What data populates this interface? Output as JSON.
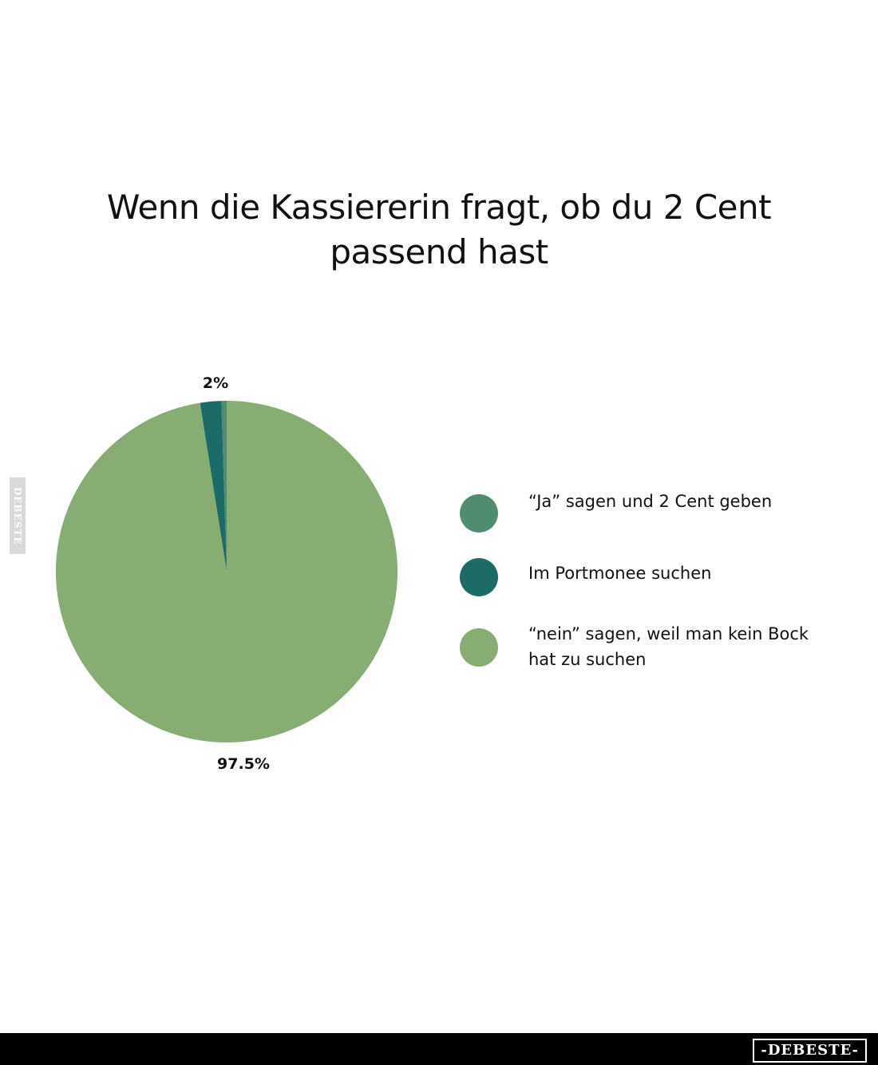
{
  "chart_data": {
    "type": "pie",
    "title": "Wenn die Kassiererin fragt, ob du 2 Cent passend hast",
    "slices": [
      {
        "name": "“Ja” sagen und 2 Cent geben",
        "value": 0.5,
        "color": "#4f8c70"
      },
      {
        "name": "Im Portmonee suchen",
        "value": 2,
        "label": "2%",
        "color": "#1d6b66"
      },
      {
        "name": "“nein” sagen, weil man kein Bock hat zu suchen",
        "value": 97.5,
        "label": "97.5%",
        "color": "#87ad72"
      }
    ],
    "legend_position": "right"
  },
  "watermark": {
    "side_text": "DEBESTE",
    "footer_text": "-DEBESTE-"
  },
  "colors": {
    "background": "#ffffff",
    "footer": "#000000"
  }
}
